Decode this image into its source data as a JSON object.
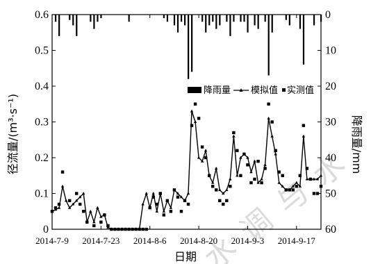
{
  "chart_data": {
    "type": "line",
    "xlabel": "日期",
    "ylabel_left": "径流量/(m³·s⁻¹)",
    "ylabel_right": "降雨量/mm",
    "ylim_left": [
      0,
      0.6
    ],
    "ylim_right_inverted": [
      0,
      60
    ],
    "yticks_left": [
      "0",
      "0.1",
      "0.2",
      "0.3",
      "0.4",
      "0.5",
      "0.6"
    ],
    "yticks_right": [
      "0",
      "10",
      "20",
      "30",
      "40",
      "50",
      "60"
    ],
    "date_ticks": [
      "2014-7-9",
      "2014-7-23",
      "2014-8-6",
      "2014-8-20",
      "2014-9-3",
      "2014-9-17"
    ],
    "legend": {
      "placement": "upper-right",
      "rain": "降雨量",
      "sim": "模拟值",
      "obs": "实测值"
    },
    "day_start": "2014-07-09",
    "day_end": "2014-09-24",
    "series": [
      {
        "name": "模拟值",
        "points": [
          [
            0,
            0.05
          ],
          [
            1,
            0.055
          ],
          [
            2,
            0.06
          ],
          [
            3,
            0.12
          ],
          [
            4,
            0.08
          ],
          [
            5,
            0.06
          ],
          [
            6,
            0.07
          ],
          [
            7,
            0.08
          ],
          [
            8,
            0.09
          ],
          [
            9,
            0.1
          ],
          [
            10,
            0.02
          ],
          [
            11,
            0.05
          ],
          [
            12,
            0.02
          ],
          [
            13,
            0.06
          ],
          [
            14,
            0.035
          ],
          [
            15,
            0.04
          ],
          [
            16,
            0.005
          ],
          [
            17,
            0.0
          ],
          [
            18,
            0.0
          ],
          [
            19,
            0.0
          ],
          [
            20,
            0.0
          ],
          [
            21,
            0.0
          ],
          [
            22,
            0.0
          ],
          [
            23,
            0.0
          ],
          [
            24,
            0.0
          ],
          [
            25,
            0.0
          ],
          [
            26,
            0.07
          ],
          [
            27,
            0.1
          ],
          [
            28,
            0.06
          ],
          [
            29,
            0.1
          ],
          [
            30,
            0.05
          ],
          [
            31,
            0.1
          ],
          [
            32,
            0.05
          ],
          [
            33,
            0.08
          ],
          [
            34,
            0.06
          ],
          [
            35,
            0.11
          ],
          [
            36,
            0.1
          ],
          [
            37,
            0.09
          ],
          [
            38,
            0.08
          ],
          [
            39,
            0.1
          ],
          [
            40,
            0.33
          ],
          [
            41,
            0.3
          ],
          [
            42,
            0.2
          ],
          [
            43,
            0.19
          ],
          [
            44,
            0.22
          ],
          [
            45,
            0.15
          ],
          [
            46,
            0.13
          ],
          [
            47,
            0.17
          ],
          [
            48,
            0.11
          ],
          [
            49,
            0.1
          ],
          [
            50,
            0.11
          ],
          [
            51,
            0.14
          ],
          [
            52,
            0.26
          ],
          [
            53,
            0.15
          ],
          [
            54,
            0.2
          ],
          [
            55,
            0.21
          ],
          [
            56,
            0.2
          ],
          [
            57,
            0.16
          ],
          [
            58,
            0.19
          ],
          [
            59,
            0.13
          ],
          [
            60,
            0.14
          ],
          [
            61,
            0.18
          ],
          [
            62,
            0.31
          ],
          [
            63,
            0.26
          ],
          [
            64,
            0.21
          ],
          [
            65,
            0.13
          ],
          [
            66,
            0.12
          ],
          [
            67,
            0.11
          ],
          [
            68,
            0.11
          ],
          [
            69,
            0.12
          ],
          [
            70,
            0.13
          ],
          [
            71,
            0.12
          ],
          [
            72,
            0.26
          ],
          [
            73,
            0.14
          ],
          [
            74,
            0.14
          ],
          [
            75,
            0.14
          ],
          [
            76,
            0.14
          ],
          [
            77,
            0.15
          ]
        ]
      },
      {
        "name": "实测值",
        "points": [
          [
            0,
            0.05
          ],
          [
            1,
            0.06
          ],
          [
            2,
            0.07
          ],
          [
            3,
            0.16
          ],
          [
            5,
            0.08
          ],
          [
            7,
            0.1
          ],
          [
            8,
            0.07
          ],
          [
            9,
            0.05
          ],
          [
            10,
            0.02
          ],
          [
            12,
            0.01
          ],
          [
            14,
            0.02
          ],
          [
            15,
            0.04
          ],
          [
            16,
            0.01
          ],
          [
            17,
            0.0
          ],
          [
            18,
            0.0
          ],
          [
            19,
            0.0
          ],
          [
            20,
            0.0
          ],
          [
            21,
            0.0
          ],
          [
            22,
            0.0
          ],
          [
            23,
            0.0
          ],
          [
            24,
            0.0
          ],
          [
            25,
            0.0
          ],
          [
            26,
            0.0
          ],
          [
            27,
            0.0
          ],
          [
            28,
            0.06
          ],
          [
            29,
            0.09
          ],
          [
            30,
            0.07
          ],
          [
            31,
            0.1
          ],
          [
            32,
            0.04
          ],
          [
            33,
            0.08
          ],
          [
            34,
            0.05
          ],
          [
            35,
            0.11
          ],
          [
            36,
            0.09
          ],
          [
            37,
            0.05
          ],
          [
            38,
            0.08
          ],
          [
            39,
            0.07
          ],
          [
            40,
            0.29
          ],
          [
            41,
            0.35
          ],
          [
            42,
            0.31
          ],
          [
            43,
            0.23
          ],
          [
            44,
            0.2
          ],
          [
            45,
            0.15
          ],
          [
            46,
            0.12
          ],
          [
            47,
            0.11
          ],
          [
            48,
            0.08
          ],
          [
            49,
            0.07
          ],
          [
            50,
            0.08
          ],
          [
            51,
            0.12
          ],
          [
            52,
            0.27
          ],
          [
            53,
            0.22
          ],
          [
            54,
            0.15
          ],
          [
            55,
            0.21
          ],
          [
            56,
            0.18
          ],
          [
            57,
            0.13
          ],
          [
            58,
            0.14
          ],
          [
            59,
            0.19
          ],
          [
            60,
            0.13
          ],
          [
            61,
            0.17
          ],
          [
            62,
            0.35
          ],
          [
            63,
            0.3
          ],
          [
            64,
            0.22
          ],
          [
            65,
            0.16
          ],
          [
            66,
            0.15
          ],
          [
            67,
            0.11
          ],
          [
            68,
            0.11
          ],
          [
            69,
            0.11
          ],
          [
            70,
            0.12
          ],
          [
            71,
            0.15
          ],
          [
            72,
            0.29
          ],
          [
            73,
            0.17
          ],
          [
            74,
            0.14
          ],
          [
            75,
            0.1
          ],
          [
            76,
            0.1
          ],
          [
            77,
            0.12
          ]
        ]
      },
      {
        "name": "降雨量",
        "points": [
          [
            1,
            2
          ],
          [
            2,
            6
          ],
          [
            5,
            1.5
          ],
          [
            6,
            3
          ],
          [
            7,
            6
          ],
          [
            11,
            2
          ],
          [
            12,
            4
          ],
          [
            13,
            2
          ],
          [
            14,
            1
          ],
          [
            22,
            2
          ],
          [
            32,
            1
          ],
          [
            33,
            2
          ],
          [
            35,
            3
          ],
          [
            36,
            5
          ],
          [
            37,
            2
          ],
          [
            38,
            3
          ],
          [
            39,
            18
          ],
          [
            40,
            16
          ],
          [
            43,
            2
          ],
          [
            44,
            5
          ],
          [
            45,
            3
          ],
          [
            46,
            2
          ],
          [
            47,
            4
          ],
          [
            48,
            3
          ],
          [
            50,
            2
          ],
          [
            51,
            6
          ],
          [
            52,
            2
          ],
          [
            54,
            2
          ],
          [
            55,
            2
          ],
          [
            56,
            5
          ],
          [
            58,
            3
          ],
          [
            59,
            4
          ],
          [
            61,
            2
          ],
          [
            62,
            17
          ],
          [
            63,
            5
          ],
          [
            67,
            1.5
          ],
          [
            68,
            3
          ],
          [
            71,
            4
          ],
          [
            72,
            14
          ],
          [
            75,
            3
          ],
          [
            77,
            2
          ]
        ]
      }
    ]
  }
}
